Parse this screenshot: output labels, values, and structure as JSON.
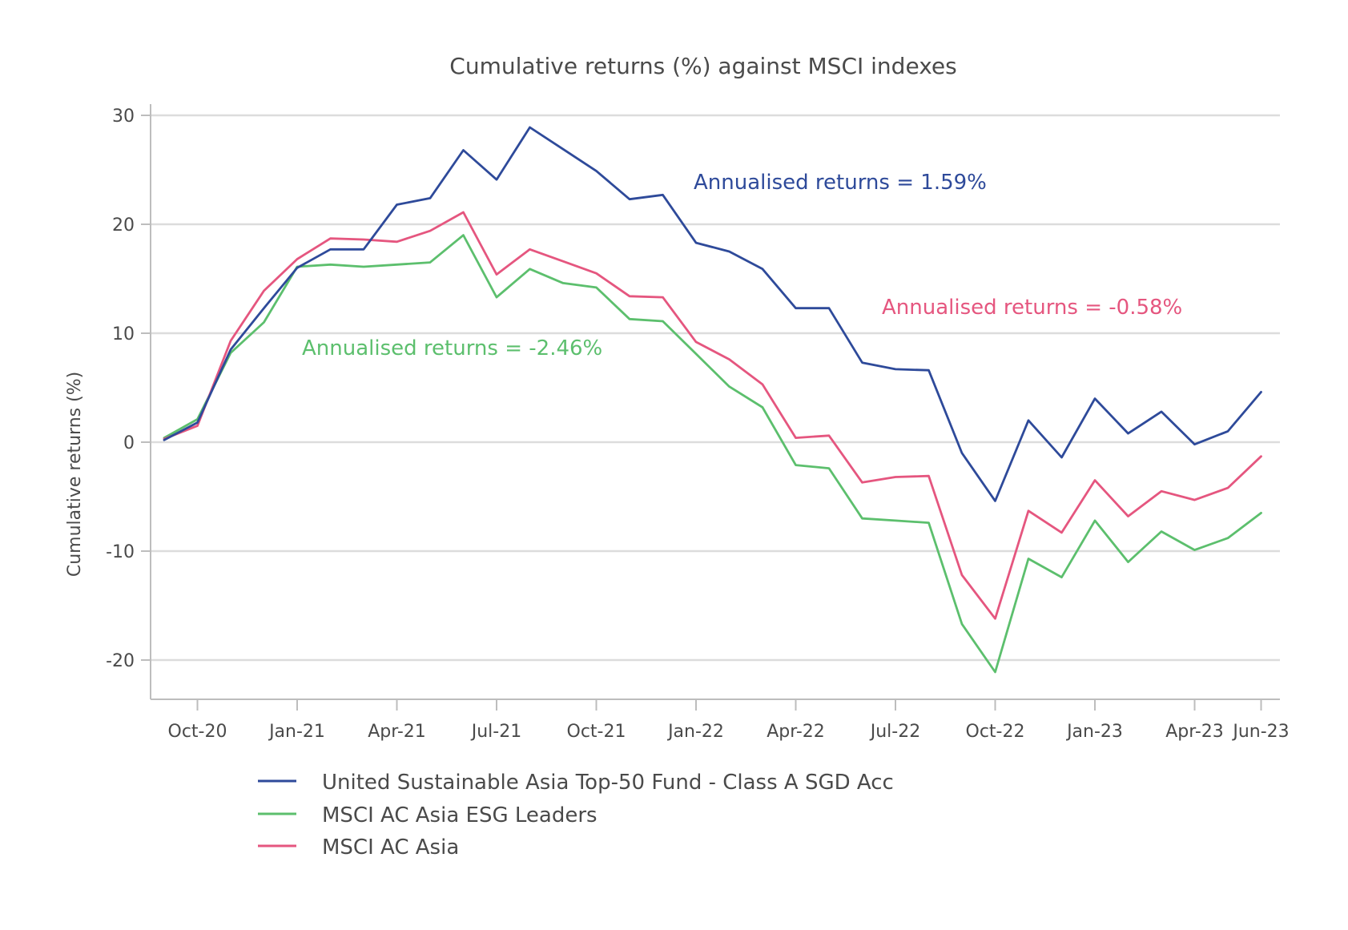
{
  "chart_data": {
    "type": "line",
    "title": "Cumulative returns (%) against MSCI indexes",
    "xlabel": "",
    "ylabel": "Cumulative returns (%)",
    "ylim": [
      -23.5,
      30
    ],
    "yticks": [
      30,
      20,
      10,
      0,
      -10,
      -20
    ],
    "grid": "horizontal",
    "legend_position": "bottom-left",
    "x_tick_labels": [
      "Oct-20",
      "Jan-21",
      "Apr-21",
      "Jul-21",
      "Oct-21",
      "Jan-22",
      "Apr-22",
      "Jul-22",
      "Oct-22",
      "Jan-23",
      "Apr-23",
      "Jun-23"
    ],
    "x": [
      "Sep-20",
      "Oct-20",
      "Nov-20",
      "Dec-20",
      "Jan-21",
      "Feb-21",
      "Mar-21",
      "Apr-21",
      "May-21",
      "Jun-21",
      "Jul-21",
      "Aug-21",
      "Sep-21",
      "Oct-21",
      "Nov-21",
      "Dec-21",
      "Jan-22",
      "Feb-22",
      "Mar-22",
      "Apr-22",
      "May-22",
      "Jun-22",
      "Jul-22",
      "Aug-22",
      "Sep-22",
      "Oct-22",
      "Nov-22",
      "Dec-22",
      "Jan-23",
      "Feb-23",
      "Mar-23",
      "Apr-23",
      "May-23",
      "Jun-23"
    ],
    "series": [
      {
        "name": "United Sustainable Asia Top-50 Fund - Class A SGD Acc",
        "color": "#2e4a9a",
        "values": [
          0.2,
          1.8,
          8.5,
          12.3,
          16.0,
          17.7,
          17.7,
          21.8,
          22.4,
          26.8,
          24.1,
          28.9,
          26.9,
          24.9,
          22.3,
          22.7,
          18.3,
          17.5,
          15.9,
          12.3,
          12.3,
          7.3,
          6.7,
          6.6,
          -1.0,
          -5.4,
          2.0,
          -1.4,
          4.0,
          0.8,
          2.8,
          -0.2,
          1.0,
          4.6
        ]
      },
      {
        "name": "MSCI AC Asia ESG Leaders",
        "color": "#5cbf6d",
        "values": [
          0.4,
          2.1,
          8.2,
          11.0,
          16.1,
          16.3,
          16.1,
          16.3,
          16.5,
          19.0,
          13.3,
          15.9,
          14.6,
          14.2,
          11.3,
          11.1,
          8.1,
          5.1,
          3.2,
          -2.1,
          -2.4,
          -7.0,
          -7.2,
          -7.4,
          -16.7,
          -21.1,
          -10.7,
          -12.4,
          -7.2,
          -11.0,
          -8.2,
          -9.9,
          -8.8,
          -6.5
        ]
      },
      {
        "name": "MSCI AC Asia",
        "color": "#e5567f",
        "values": [
          0.3,
          1.5,
          9.3,
          13.9,
          16.8,
          18.7,
          18.6,
          18.4,
          19.4,
          21.1,
          15.4,
          17.7,
          16.6,
          15.5,
          13.4,
          13.3,
          9.2,
          7.6,
          5.3,
          0.4,
          0.6,
          -3.7,
          -3.2,
          -3.1,
          -12.2,
          -16.2,
          -6.3,
          -8.3,
          -3.5,
          -6.8,
          -4.5,
          -5.3,
          -4.2,
          -1.3
        ]
      }
    ],
    "annotations": [
      {
        "text": "Annualised returns = 1.59%",
        "color": "#2e4a9a"
      },
      {
        "text": "Annualised returns = -0.58%",
        "color": "#e5567f"
      },
      {
        "text": "Annualised returns = -2.46%",
        "color": "#5cbf6d"
      }
    ]
  }
}
